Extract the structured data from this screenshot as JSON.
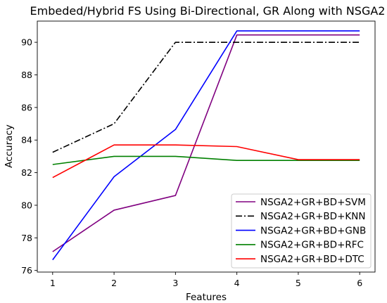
{
  "chart_data": {
    "type": "line",
    "title": "Embeded/Hybrid FS Using Bi-Directional, GR Along with NSGA2",
    "xlabel": "Features",
    "ylabel": "Accuracy",
    "x": [
      1,
      2,
      3,
      4,
      5,
      6
    ],
    "xticks": [
      "1",
      "2",
      "3",
      "4",
      "5",
      "6"
    ],
    "yticks": [
      "76",
      "78",
      "80",
      "82",
      "84",
      "86",
      "88",
      "90"
    ],
    "ytick_values": [
      76,
      78,
      80,
      82,
      84,
      86,
      88,
      90
    ],
    "xlim": [
      0.75,
      6.25
    ],
    "ylim": [
      75.9,
      91.3
    ],
    "grid": false,
    "legend_position": "lower-right",
    "series": [
      {
        "name": "NSGA2+GR+BD+SVM",
        "color": "#800080",
        "dash": "solid",
        "values": [
          77.15,
          79.7,
          80.6,
          90.45,
          90.45,
          90.45
        ]
      },
      {
        "name": "NSGA2+GR+BD+KNN",
        "color": "#000000",
        "dash": "dashdot",
        "values": [
          83.25,
          85.0,
          90.0,
          90.0,
          90.0,
          90.0
        ]
      },
      {
        "name": "NSGA2+GR+BD+GNB",
        "color": "#0000ff",
        "dash": "solid",
        "values": [
          76.65,
          81.75,
          84.65,
          90.7,
          90.7,
          90.7
        ]
      },
      {
        "name": "NSGA2+GR+BD+RFC",
        "color": "#008000",
        "dash": "solid",
        "values": [
          82.5,
          83.0,
          83.0,
          82.75,
          82.75,
          82.75
        ]
      },
      {
        "name": "NSGA2+GR+BD+DTC",
        "color": "#ff0000",
        "dash": "solid",
        "values": [
          81.7,
          83.7,
          83.7,
          83.6,
          82.8,
          82.8
        ]
      }
    ]
  }
}
